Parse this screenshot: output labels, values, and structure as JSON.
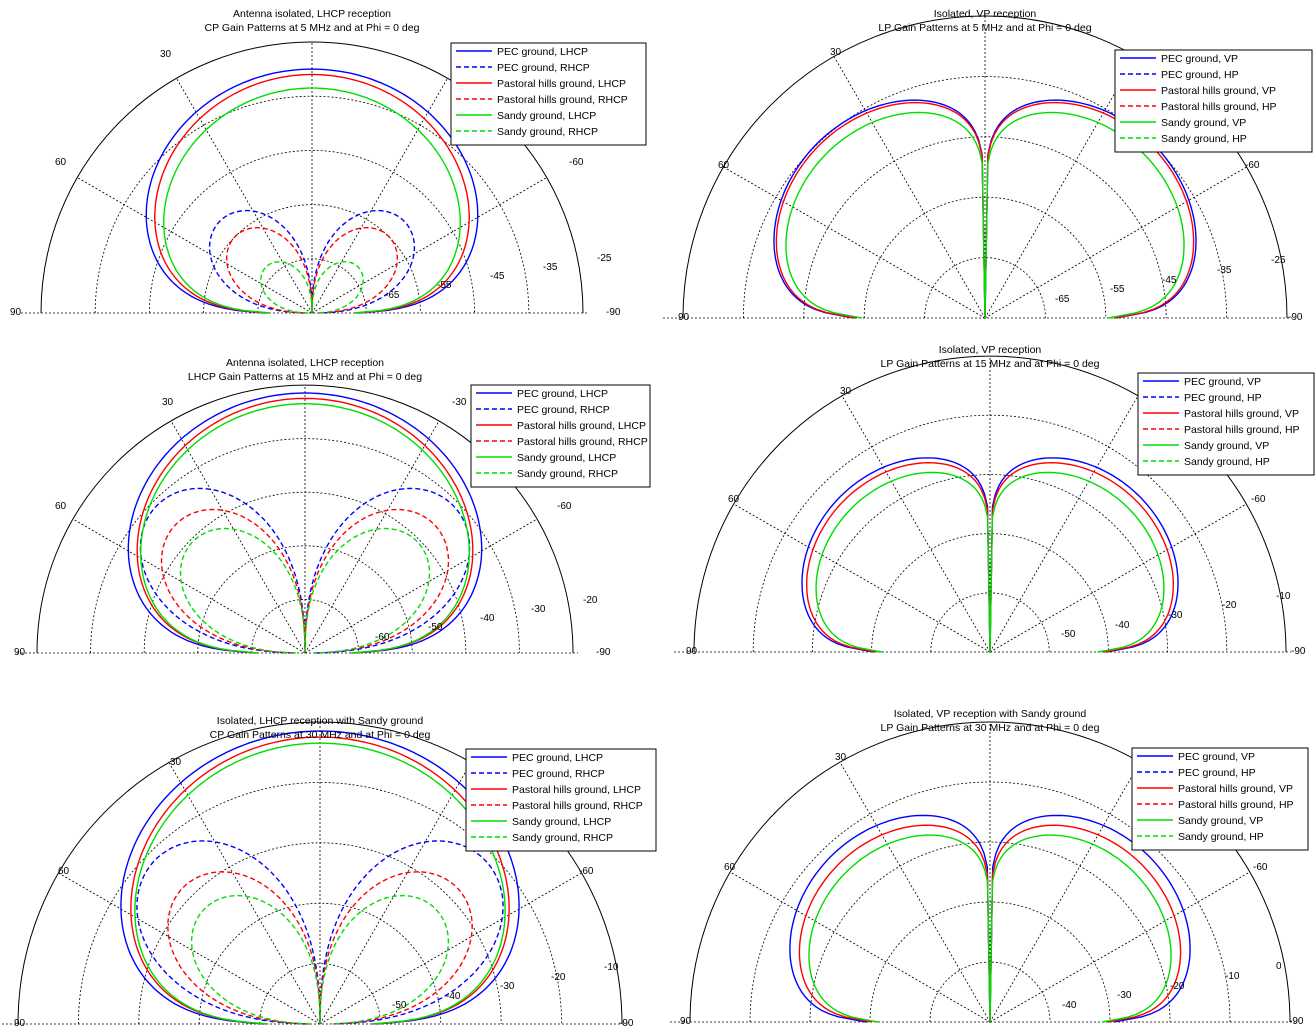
{
  "colors": {
    "pec": "#0000ff",
    "pastoral": "#ff0000",
    "sandy": "#00dd00",
    "grid": "#000000",
    "background": "#ffffff"
  },
  "chart_data": [
    {
      "type": "polar",
      "title": "Antenna isolated, LHCP reception",
      "subtitle": "CP Gain Patterns at 5 MHz and at Phi = 0 deg",
      "angle_labels": [
        "30",
        "60",
        "90",
        "-60",
        "-90"
      ],
      "radial_labels": [
        "-65",
        "-55",
        "-45",
        "-35",
        "-25"
      ],
      "legend_position": "top-right",
      "peaks": {
        "pec_co": -30,
        "pastoral_co": -31,
        "sandy_co": -33.5,
        "pec_x": -51,
        "pastoral_x": -55,
        "sandy_x": -63
      },
      "series": [
        {
          "name": "PEC ground, LHCP",
          "style": "solid"
        },
        {
          "name": "PEC ground, RHCP",
          "style": "dashed"
        },
        {
          "name": "Pastoral hills ground, LHCP",
          "style": "solid"
        },
        {
          "name": "Pastoral hills ground, RHCP",
          "style": "dashed"
        },
        {
          "name": "Sandy ground, LHCP",
          "style": "solid"
        },
        {
          "name": "Sandy ground, RHCP",
          "style": "dashed"
        }
      ]
    },
    {
      "type": "polar",
      "title": "Isolated, VP reception",
      "subtitle": "LP Gain Patterns at 5 MHz and at Phi = 0 deg",
      "angle_labels": [
        "30",
        "60",
        "90",
        "-60",
        "-90"
      ],
      "radial_labels": [
        "-65",
        "-55",
        "-45",
        "-35",
        "-25"
      ],
      "legend_position": "top-right",
      "peaks": {
        "pec": -31,
        "pastoral": -31.5,
        "sandy": -33.5
      },
      "series": [
        {
          "name": "PEC ground, VP",
          "style": "solid"
        },
        {
          "name": "PEC ground, HP",
          "style": "dashed"
        },
        {
          "name": "Pastoral hills ground, VP",
          "style": "solid"
        },
        {
          "name": "Pastoral hills ground, HP",
          "style": "dashed"
        },
        {
          "name": "Sandy ground, VP",
          "style": "solid"
        },
        {
          "name": "Sandy ground, HP",
          "style": "dashed"
        }
      ]
    },
    {
      "type": "polar",
      "title": "Antenna isolated, LHCP reception",
      "subtitle": "LHCP Gain Patterns at 15 MHz and at Phi = 0 deg",
      "angle_labels": [
        "30",
        "-30",
        "60",
        "-60",
        "90",
        "-90"
      ],
      "radial_labels": [
        "-60",
        "-50",
        "-40",
        "-30",
        "-20"
      ],
      "legend_position": "top-right",
      "peaks": {
        "pec_co": -21.5,
        "pastoral_co": -22.5,
        "sandy_co": -23.5,
        "pec_x": -31,
        "pastoral_x": -36,
        "sandy_x": -40.5
      },
      "series": [
        {
          "name": "PEC ground, LHCP",
          "style": "solid"
        },
        {
          "name": "PEC ground, RHCP",
          "style": "dashed"
        },
        {
          "name": "Pastoral hills ground, LHCP",
          "style": "solid"
        },
        {
          "name": "Pastoral hills ground, RHCP",
          "style": "dashed"
        },
        {
          "name": "Sandy ground, LHCP",
          "style": "solid"
        },
        {
          "name": "Sandy ground, RHCP",
          "style": "dashed"
        }
      ]
    },
    {
      "type": "polar",
      "title": "Isolated, VP reception",
      "subtitle": "LP Gain Patterns at 15 MHz and at Phi = 0 deg",
      "angle_labels": [
        "30",
        "60",
        "90",
        "-60",
        "-90"
      ],
      "radial_labels": [
        "-50",
        "-40",
        "-30",
        "-20",
        "-10"
      ],
      "legend_position": "top-right",
      "peaks": {
        "pec": -20,
        "pastoral": -21,
        "sandy": -23
      },
      "series": [
        {
          "name": "PEC ground, VP",
          "style": "solid"
        },
        {
          "name": "PEC ground, HP",
          "style": "dashed"
        },
        {
          "name": "Pastoral hills ground, VP",
          "style": "solid"
        },
        {
          "name": "Pastoral hills ground, HP",
          "style": "dashed"
        },
        {
          "name": "Sandy ground, VP",
          "style": "solid"
        },
        {
          "name": "Sandy ground, HP",
          "style": "dashed"
        }
      ]
    },
    {
      "type": "polar",
      "title": "Isolated, LHCP reception with Sandy ground",
      "subtitle": "CP Gain Patterns at 30 MHz and at Phi = 0 deg",
      "angle_labels": [
        "30",
        "60",
        "90",
        "-60",
        "-90"
      ],
      "radial_labels": [
        "-50",
        "-40",
        "-30",
        "-20",
        "-10"
      ],
      "legend_position": "top-right",
      "peaks": {
        "pec_co": -11.5,
        "pastoral_co": -12.5,
        "sandy_co": -13.5,
        "pec_x": -21.5,
        "pastoral_x": -28,
        "sandy_x": -33
      },
      "series": [
        {
          "name": "PEC ground, LHCP",
          "style": "solid"
        },
        {
          "name": "PEC ground, RHCP",
          "style": "dashed"
        },
        {
          "name": "Pastoral hills ground, LHCP",
          "style": "solid"
        },
        {
          "name": "Pastoral hills ground, RHCP",
          "style": "dashed"
        },
        {
          "name": "Sandy ground, LHCP",
          "style": "solid"
        },
        {
          "name": "Sandy ground, RHCP",
          "style": "dashed"
        }
      ]
    },
    {
      "type": "polar",
      "title": "Isolated, VP reception with Sandy ground",
      "subtitle": "LP Gain Patterns at 30 MHz and at Phi = 0 deg",
      "angle_labels": [
        "30",
        "60",
        "90",
        "-60",
        "-90"
      ],
      "radial_labels": [
        "-40",
        "-30",
        "-20",
        "-10",
        "0"
      ],
      "legend_position": "top-right",
      "peaks": {
        "pec": -8,
        "pastoral": -10,
        "sandy": -12
      },
      "series": [
        {
          "name": "PEC ground, VP",
          "style": "solid"
        },
        {
          "name": "PEC ground, HP",
          "style": "dashed"
        },
        {
          "name": "Pastoral hills ground, VP",
          "style": "solid"
        },
        {
          "name": "Pastoral hills ground, HP",
          "style": "dashed"
        },
        {
          "name": "Sandy ground, VP",
          "style": "solid"
        },
        {
          "name": "Sandy ground, HP",
          "style": "dashed"
        }
      ]
    }
  ]
}
